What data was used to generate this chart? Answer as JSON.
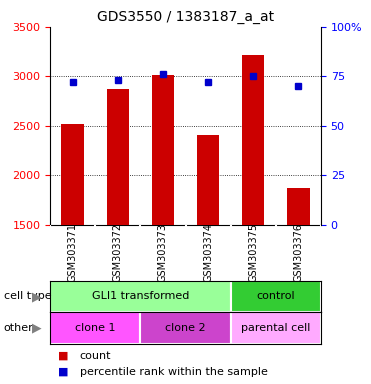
{
  "title": "GDS3550 / 1383187_a_at",
  "samples": [
    "GSM303371",
    "GSM303372",
    "GSM303373",
    "GSM303374",
    "GSM303375",
    "GSM303376"
  ],
  "counts": [
    2520,
    2870,
    3010,
    2410,
    3220,
    1870
  ],
  "percentiles": [
    72,
    73,
    76,
    72,
    75,
    70
  ],
  "ylim_left": [
    1500,
    3500
  ],
  "ylim_right": [
    0,
    100
  ],
  "yticks_left": [
    1500,
    2000,
    2500,
    3000,
    3500
  ],
  "yticks_right": [
    0,
    25,
    50,
    75,
    100
  ],
  "bar_color": "#cc0000",
  "dot_color": "#0000cc",
  "bar_width": 0.5,
  "cell_type_row": {
    "label": "cell type",
    "groups": [
      {
        "text": "GLI1 transformed",
        "span": [
          0,
          4
        ],
        "color": "#99ff99"
      },
      {
        "text": "control",
        "span": [
          4,
          6
        ],
        "color": "#33cc33"
      }
    ]
  },
  "other_row": {
    "label": "other",
    "groups": [
      {
        "text": "clone 1",
        "span": [
          0,
          2
        ],
        "color": "#ff55ff"
      },
      {
        "text": "clone 2",
        "span": [
          2,
          4
        ],
        "color": "#cc44cc"
      },
      {
        "text": "parental cell",
        "span": [
          4,
          6
        ],
        "color": "#ffaaff"
      }
    ]
  },
  "legend_items": [
    {
      "color": "#cc0000",
      "label": "count"
    },
    {
      "color": "#0000cc",
      "label": "percentile rank within the sample"
    }
  ],
  "background_color": "#ffffff",
  "plot_bg_color": "#ffffff",
  "tick_label_area_color": "#cccccc"
}
